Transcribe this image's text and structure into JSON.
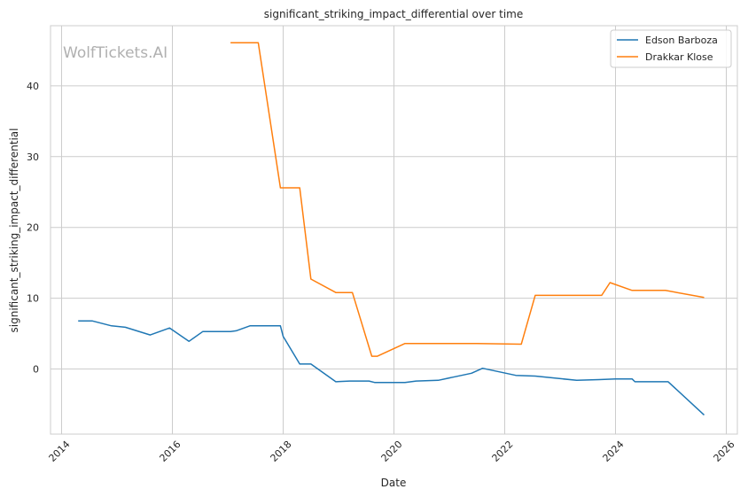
{
  "chart_data": {
    "type": "line",
    "title": "significant_striking_impact_differential over time",
    "xlabel": "Date",
    "ylabel": "significant_striking_impact_differential",
    "watermark": "WolfTickets.AI",
    "xlim": [
      2013.8,
      2026.2
    ],
    "ylim": [
      -9.2,
      48.5
    ],
    "x_ticks": [
      2014,
      2016,
      2018,
      2020,
      2022,
      2024,
      2026
    ],
    "x_tick_labels": [
      "2014",
      "2016",
      "2018",
      "2020",
      "2022",
      "2024",
      "2026"
    ],
    "y_ticks": [
      0,
      10,
      20,
      30,
      40
    ],
    "y_tick_labels": [
      "0",
      "10",
      "20",
      "30",
      "40"
    ],
    "grid": true,
    "legend_position": "top-right",
    "series": [
      {
        "name": "Edson Barboza",
        "color": "#1f77b4",
        "x": [
          2014.3,
          2014.55,
          2014.9,
          2015.15,
          2015.6,
          2015.95,
          2016.3,
          2016.55,
          2016.75,
          2017.05,
          2017.15,
          2017.4,
          2017.7,
          2017.95,
          2018.0,
          2018.3,
          2018.5,
          2018.95,
          2019.2,
          2019.55,
          2019.65,
          2019.9,
          2020.2,
          2020.4,
          2020.8,
          2021.1,
          2021.4,
          2021.6,
          2022.2,
          2022.55,
          2023.3,
          2023.7,
          2024.0,
          2024.3,
          2024.35,
          2024.6,
          2024.95,
          2025.6
        ],
        "y": [
          6.8,
          6.8,
          6.1,
          5.9,
          4.8,
          5.8,
          3.9,
          5.3,
          5.3,
          5.3,
          5.4,
          6.1,
          6.1,
          6.1,
          4.6,
          0.7,
          0.7,
          -1.8,
          -1.7,
          -1.7,
          -1.9,
          -1.9,
          -1.9,
          -1.7,
          -1.6,
          -1.1,
          -0.6,
          0.1,
          -0.9,
          -1.0,
          -1.6,
          -1.5,
          -1.4,
          -1.4,
          -1.8,
          -1.8,
          -1.8,
          -6.5
        ]
      },
      {
        "name": "Drakkar Klose",
        "color": "#ff7f0e",
        "x": [
          2017.05,
          2017.55,
          2017.95,
          2018.3,
          2018.5,
          2018.95,
          2019.25,
          2019.6,
          2019.7,
          2020.2,
          2020.6,
          2021.5,
          2022.3,
          2022.55,
          2023.2,
          2023.75,
          2023.9,
          2024.3,
          2024.9,
          2025.6
        ],
        "y": [
          46.1,
          46.1,
          25.6,
          25.6,
          12.7,
          10.8,
          10.8,
          1.8,
          1.8,
          3.6,
          3.6,
          3.6,
          3.5,
          10.4,
          10.4,
          10.4,
          12.2,
          11.1,
          11.1,
          10.1
        ]
      }
    ]
  }
}
